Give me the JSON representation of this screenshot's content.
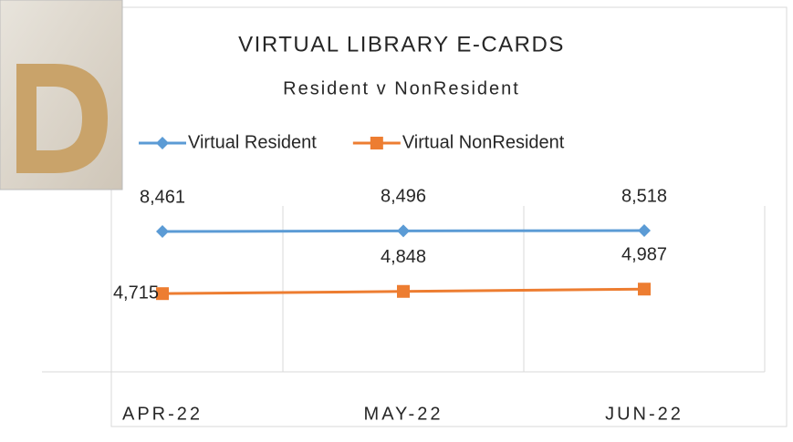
{
  "chart_data": {
    "type": "line",
    "title": "VIRTUAL LIBRARY E-CARDS",
    "subtitle": "Resident v NonResident",
    "categories": [
      "APR-22",
      "MAY-22",
      "JUN-22"
    ],
    "series": [
      {
        "name": "Virtual Resident",
        "color": "#5b9bd5",
        "marker": "diamond",
        "values": [
          8461,
          8496,
          8518
        ],
        "value_labels": [
          "8,461",
          "8,496",
          "8,518"
        ]
      },
      {
        "name": "Virtual NonResident",
        "color": "#ed7d31",
        "marker": "square",
        "values": [
          4715,
          4848,
          4987
        ],
        "value_labels": [
          "4,715",
          "4,848",
          "4,987"
        ]
      }
    ],
    "ylim": [
      0,
      10000
    ],
    "legend": "top"
  }
}
